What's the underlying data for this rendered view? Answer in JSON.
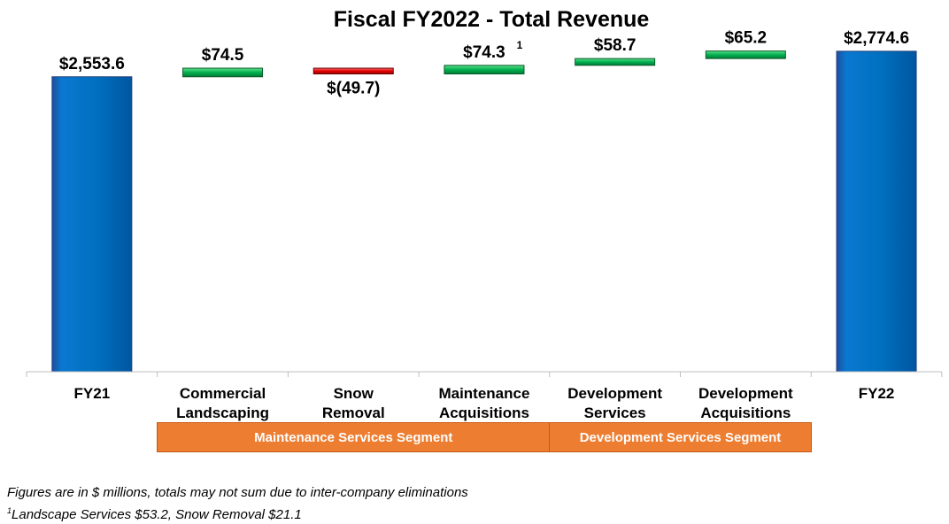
{
  "chart_data": {
    "type": "bar",
    "subtype": "waterfall",
    "title": "Fiscal FY2022 - Total Revenue",
    "categories": [
      "FY21",
      "Commercial Landscaping",
      "Snow Removal",
      "Maintenance Acquisitions",
      "Development Services",
      "Development Acquisitions",
      "FY22"
    ],
    "category_lines": [
      [
        "FY21"
      ],
      [
        "Commercial",
        "Landscaping"
      ],
      [
        "Snow",
        "Removal"
      ],
      [
        "Maintenance",
        "Acquisitions"
      ],
      [
        "Development",
        "Services"
      ],
      [
        "Development",
        "Acquisitions"
      ],
      [
        "FY22"
      ]
    ],
    "values": [
      2553.6,
      74.5,
      -49.7,
      74.3,
      58.7,
      65.2,
      2774.6
    ],
    "bar_kinds": [
      "total",
      "increase",
      "decrease",
      "increase",
      "increase",
      "increase",
      "total"
    ],
    "value_labels": [
      "$2,553.6",
      "$74.5",
      "$(49.7)",
      "$74.3",
      "$58.7",
      "$65.2",
      "$2,774.6"
    ],
    "label_superscripts": [
      "",
      "",
      "",
      "1",
      "",
      "",
      ""
    ],
    "unit": "$ millions",
    "legend": "none",
    "grid": false,
    "colors": {
      "total": "#0070c0",
      "increase": "#00b050",
      "decrease": "#e00000",
      "segment": "#ed7d31"
    },
    "segments": [
      {
        "label": "Maintenance Services Segment",
        "from": "Commercial Landscaping",
        "to": "Maintenance Acquisitions"
      },
      {
        "label": "Development Services Segment",
        "from": "Development Services",
        "to": "Development Acquisitions"
      }
    ]
  },
  "footnotes": {
    "line1": "Figures are in $ millions, totals may not sum due to inter-company eliminations",
    "line2_marker": "1",
    "line2_text": "Landscape Services $53.2, Snow Removal $21.1"
  }
}
